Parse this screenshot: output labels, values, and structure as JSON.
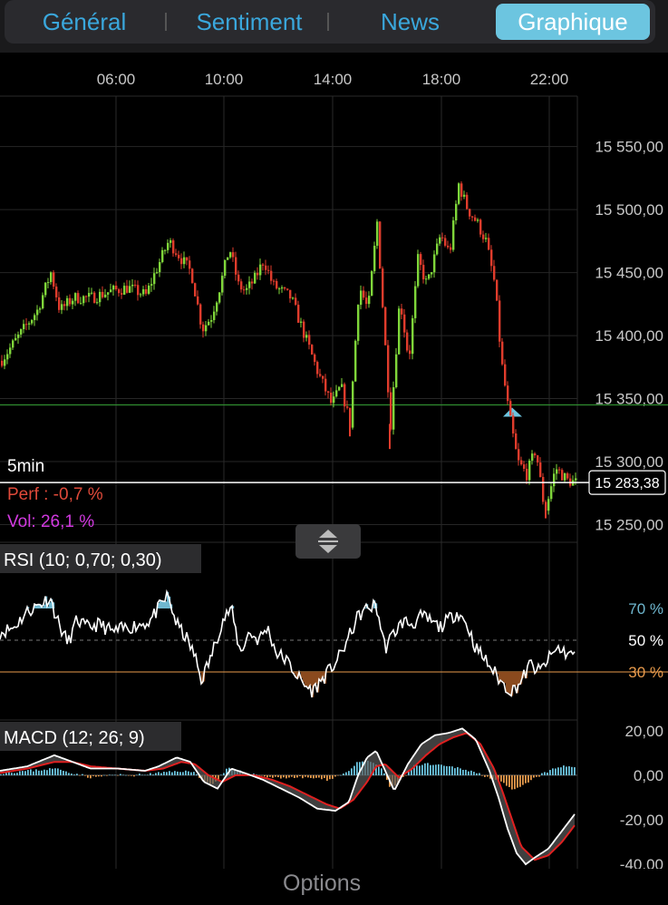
{
  "tabs": {
    "items": [
      {
        "label": "Général"
      },
      {
        "label": "Sentiment"
      },
      {
        "label": "News"
      },
      {
        "label": "Graphique"
      }
    ],
    "active": "Graphique"
  },
  "chart_data": [
    {
      "type": "candlestick",
      "interval_label": "5min",
      "perf_text": "Perf : -0,7 %",
      "vol_text": "Vol: 26,1 %",
      "x_ticks": [
        "06:00",
        "10:00",
        "14:00",
        "18:00",
        "22:00"
      ],
      "y_ticks": [
        "15 550,00",
        "15 500,00",
        "15 450,00",
        "15 400,00",
        "15 350,00",
        "15 300,00",
        "15 250,00"
      ],
      "ylim": [
        15236,
        15590
      ],
      "current_price": 15283.38,
      "current_price_label": "15 283,38",
      "reference_line": 15345,
      "path": [
        [
          0,
          15380
        ],
        [
          20,
          15400
        ],
        [
          40,
          15420
        ],
        [
          55,
          15450
        ],
        [
          65,
          15420
        ],
        [
          80,
          15430
        ],
        [
          100,
          15430
        ],
        [
          120,
          15435
        ],
        [
          140,
          15438
        ],
        [
          160,
          15432
        ],
        [
          170,
          15450
        ],
        [
          185,
          15475
        ],
        [
          200,
          15460
        ],
        [
          210,
          15450
        ],
        [
          222,
          15405
        ],
        [
          232,
          15415
        ],
        [
          242,
          15440
        ],
        [
          252,
          15470
        ],
        [
          262,
          15440
        ],
        [
          270,
          15435
        ],
        [
          280,
          15445
        ],
        [
          290,
          15460
        ],
        [
          300,
          15440
        ],
        [
          320,
          15430
        ],
        [
          335,
          15400
        ],
        [
          350,
          15370
        ],
        [
          365,
          15345
        ],
        [
          375,
          15360
        ],
        [
          385,
          15330
        ],
        [
          395,
          15440
        ],
        [
          405,
          15420
        ],
        [
          415,
          15490
        ],
        [
          425,
          15380
        ],
        [
          430,
          15330
        ],
        [
          440,
          15430
        ],
        [
          450,
          15380
        ],
        [
          460,
          15460
        ],
        [
          470,
          15440
        ],
        [
          485,
          15480
        ],
        [
          495,
          15465
        ],
        [
          505,
          15520
        ],
        [
          515,
          15500
        ],
        [
          525,
          15490
        ],
        [
          535,
          15475
        ],
        [
          545,
          15440
        ],
        [
          552,
          15380
        ],
        [
          560,
          15340
        ],
        [
          570,
          15300
        ],
        [
          580,
          15290
        ],
        [
          590,
          15310
        ],
        [
          600,
          15260
        ],
        [
          612,
          15295
        ],
        [
          625,
          15285
        ],
        [
          637,
          15283
        ]
      ]
    },
    {
      "type": "line",
      "name": "RSI (10; 0,70; 0,30)",
      "y_ticks": [
        "70 %",
        "50 %",
        "30 %"
      ],
      "levels": [
        70,
        50,
        30
      ],
      "ylim": [
        10,
        90
      ],
      "path": [
        [
          0,
          55
        ],
        [
          15,
          58
        ],
        [
          30,
          68
        ],
        [
          45,
          73
        ],
        [
          55,
          77
        ],
        [
          65,
          60
        ],
        [
          75,
          48
        ],
        [
          85,
          63
        ],
        [
          95,
          58
        ],
        [
          110,
          60
        ],
        [
          125,
          55
        ],
        [
          140,
          58
        ],
        [
          155,
          60
        ],
        [
          165,
          62
        ],
        [
          175,
          70
        ],
        [
          185,
          78
        ],
        [
          195,
          60
        ],
        [
          205,
          52
        ],
        [
          215,
          40
        ],
        [
          222,
          25
        ],
        [
          232,
          38
        ],
        [
          245,
          62
        ],
        [
          255,
          70
        ],
        [
          265,
          42
        ],
        [
          275,
          55
        ],
        [
          285,
          50
        ],
        [
          295,
          58
        ],
        [
          305,
          42
        ],
        [
          315,
          38
        ],
        [
          325,
          30
        ],
        [
          335,
          22
        ],
        [
          345,
          18
        ],
        [
          355,
          25
        ],
        [
          365,
          32
        ],
        [
          375,
          40
        ],
        [
          385,
          52
        ],
        [
          395,
          65
        ],
        [
          405,
          70
        ],
        [
          415,
          72
        ],
        [
          425,
          45
        ],
        [
          435,
          55
        ],
        [
          445,
          62
        ],
        [
          455,
          60
        ],
        [
          465,
          65
        ],
        [
          475,
          62
        ],
        [
          485,
          58
        ],
        [
          495,
          63
        ],
        [
          505,
          68
        ],
        [
          515,
          60
        ],
        [
          525,
          45
        ],
        [
          535,
          38
        ],
        [
          545,
          30
        ],
        [
          555,
          22
        ],
        [
          565,
          18
        ],
        [
          575,
          24
        ],
        [
          585,
          35
        ],
        [
          595,
          30
        ],
        [
          605,
          38
        ],
        [
          615,
          45
        ],
        [
          625,
          42
        ],
        [
          635,
          40
        ]
      ]
    },
    {
      "type": "line",
      "name": "MACD (12; 26; 9)",
      "y_ticks": [
        "20,00",
        "0,00",
        "-20,00",
        "-40,00"
      ],
      "ylim": [
        -42,
        24
      ],
      "macd": [
        [
          0,
          2
        ],
        [
          30,
          4
        ],
        [
          60,
          9
        ],
        [
          80,
          6
        ],
        [
          100,
          3
        ],
        [
          130,
          3
        ],
        [
          160,
          2
        ],
        [
          175,
          4
        ],
        [
          195,
          8
        ],
        [
          210,
          6
        ],
        [
          225,
          -3
        ],
        [
          240,
          -6
        ],
        [
          255,
          3
        ],
        [
          270,
          1
        ],
        [
          290,
          -2
        ],
        [
          310,
          -6
        ],
        [
          330,
          -10
        ],
        [
          350,
          -15
        ],
        [
          370,
          -16
        ],
        [
          385,
          -12
        ],
        [
          395,
          0
        ],
        [
          405,
          8
        ],
        [
          415,
          11
        ],
        [
          425,
          2
        ],
        [
          435,
          -7
        ],
        [
          450,
          5
        ],
        [
          465,
          14
        ],
        [
          480,
          18
        ],
        [
          495,
          19
        ],
        [
          510,
          21
        ],
        [
          525,
          16
        ],
        [
          540,
          2
        ],
        [
          550,
          -10
        ],
        [
          560,
          -24
        ],
        [
          570,
          -35
        ],
        [
          580,
          -40
        ],
        [
          590,
          -37
        ],
        [
          605,
          -33
        ],
        [
          620,
          -25
        ],
        [
          635,
          -17
        ]
      ],
      "signal": [
        [
          0,
          1
        ],
        [
          30,
          3
        ],
        [
          60,
          6
        ],
        [
          80,
          6
        ],
        [
          100,
          4
        ],
        [
          130,
          3
        ],
        [
          160,
          2
        ],
        [
          180,
          3
        ],
        [
          200,
          6
        ],
        [
          215,
          5
        ],
        [
          230,
          0
        ],
        [
          245,
          -3
        ],
        [
          260,
          0
        ],
        [
          280,
          0
        ],
        [
          300,
          -2
        ],
        [
          320,
          -5
        ],
        [
          340,
          -9
        ],
        [
          360,
          -13
        ],
        [
          375,
          -15
        ],
        [
          390,
          -11
        ],
        [
          405,
          -3
        ],
        [
          415,
          4
        ],
        [
          425,
          5
        ],
        [
          440,
          -1
        ],
        [
          455,
          3
        ],
        [
          470,
          9
        ],
        [
          485,
          14
        ],
        [
          500,
          17
        ],
        [
          515,
          19
        ],
        [
          530,
          14
        ],
        [
          545,
          3
        ],
        [
          555,
          -8
        ],
        [
          565,
          -20
        ],
        [
          575,
          -32
        ],
        [
          590,
          -38
        ],
        [
          605,
          -36
        ],
        [
          620,
          -30
        ],
        [
          635,
          -22
        ]
      ],
      "histogram": [
        [
          0,
          1
        ],
        [
          30,
          2
        ],
        [
          60,
          3
        ],
        [
          80,
          1
        ],
        [
          100,
          -1
        ],
        [
          120,
          0
        ],
        [
          150,
          0
        ],
        [
          175,
          1
        ],
        [
          200,
          2
        ],
        [
          215,
          1
        ],
        [
          225,
          -3
        ],
        [
          235,
          -4
        ],
        [
          250,
          3
        ],
        [
          270,
          1
        ],
        [
          300,
          -1
        ],
        [
          320,
          -1
        ],
        [
          340,
          -1
        ],
        [
          360,
          -2
        ],
        [
          380,
          1
        ],
        [
          395,
          6
        ],
        [
          410,
          6
        ],
        [
          420,
          3
        ],
        [
          430,
          -6
        ],
        [
          440,
          -3
        ],
        [
          455,
          4
        ],
        [
          470,
          5
        ],
        [
          490,
          4
        ],
        [
          510,
          3
        ],
        [
          525,
          1
        ],
        [
          540,
          -1
        ],
        [
          555,
          -4
        ],
        [
          565,
          -7
        ],
        [
          575,
          -5
        ],
        [
          590,
          -1
        ],
        [
          605,
          2
        ],
        [
          620,
          4
        ],
        [
          635,
          4
        ]
      ]
    }
  ],
  "indicator_toggle_icon": "resize-vertical-icon",
  "footer": {
    "options_label": "Options"
  },
  "colors": {
    "up": "#7fd63a",
    "down": "#e03c2c",
    "perf": "#e04a3a",
    "vol": "#d23ae0",
    "accent": "#6cc5e0",
    "rsi_high": "#6fb7cf",
    "rsi_low": "#e79a4c",
    "macd_line": "#ffffff",
    "signal_line": "#e02020",
    "hist_pos": "#6cc5e0",
    "hist_neg": "#e79a4c",
    "ref_line": "#2f8c2f"
  }
}
